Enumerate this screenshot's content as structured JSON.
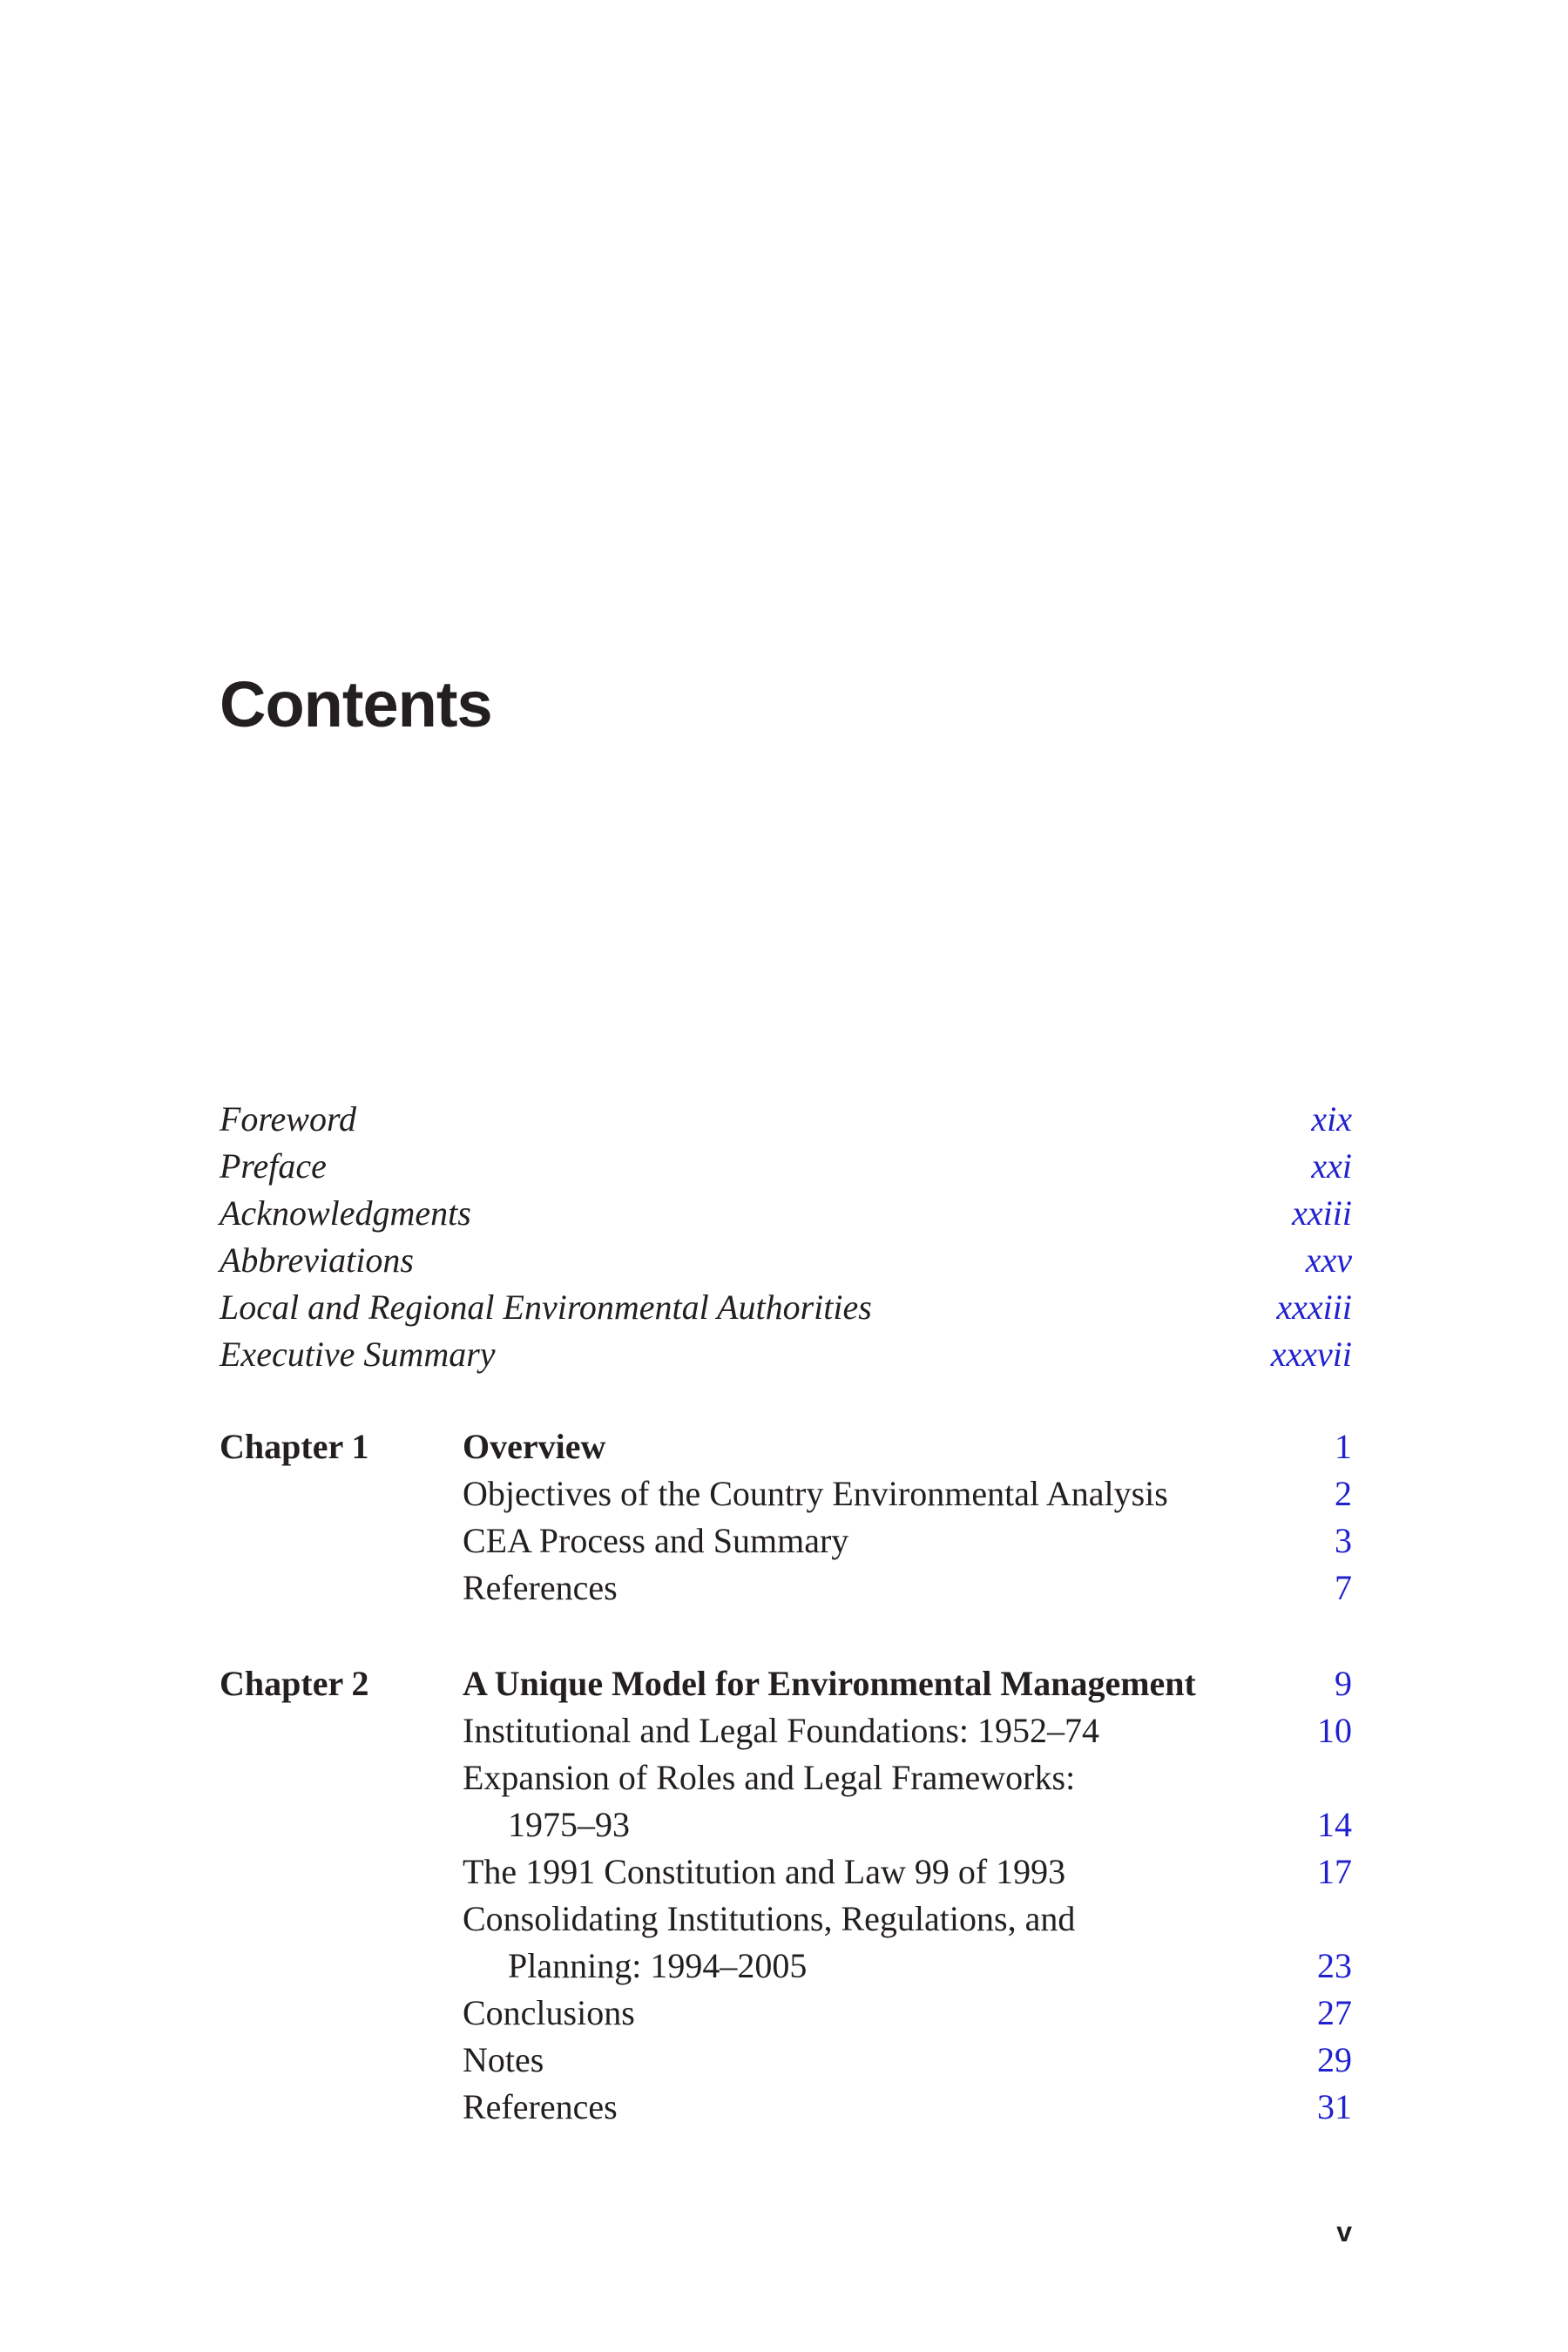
{
  "page": {
    "title": "Contents",
    "folio": "v"
  },
  "colors": {
    "link_blue": "#2020d0",
    "text_black": "#231f20"
  },
  "front_matter": [
    {
      "title": "Foreword",
      "page": "xix"
    },
    {
      "title": "Preface",
      "page": "xxi"
    },
    {
      "title": "Acknowledgments",
      "page": "xxiii"
    },
    {
      "title": "Abbreviations",
      "page": "xxv"
    },
    {
      "title": "Local and Regional Environmental Authorities",
      "page": "xxxiii"
    },
    {
      "title": "Executive Summary",
      "page": "xxxvii"
    }
  ],
  "chapters": [
    {
      "label": "Chapter 1",
      "rows": [
        {
          "text": "Overview",
          "page": "1"
        },
        {
          "text": "Objectives of the Country Environmental Analysis",
          "page": "2"
        },
        {
          "text": "CEA Process and Summary",
          "page": "3"
        },
        {
          "text": "References",
          "page": "7"
        }
      ]
    },
    {
      "label": "Chapter 2",
      "rows": [
        {
          "text": "A Unique Model for Environmental Management",
          "page": "9"
        },
        {
          "text": "Institutional and Legal Foundations: 1952–74",
          "page": "10"
        },
        {
          "text": "Expansion of Roles and Legal Frameworks:",
          "page": ""
        },
        {
          "text": "1975–93",
          "page": "14"
        },
        {
          "text": "The 1991 Constitution and Law 99 of 1993",
          "page": "17"
        },
        {
          "text": "Consolidating Institutions, Regulations, and",
          "page": ""
        },
        {
          "text": "Planning: 1994–2005",
          "page": "23"
        },
        {
          "text": "Conclusions",
          "page": "27"
        },
        {
          "text": "Notes",
          "page": "29"
        },
        {
          "text": "References",
          "page": "31"
        }
      ]
    }
  ]
}
